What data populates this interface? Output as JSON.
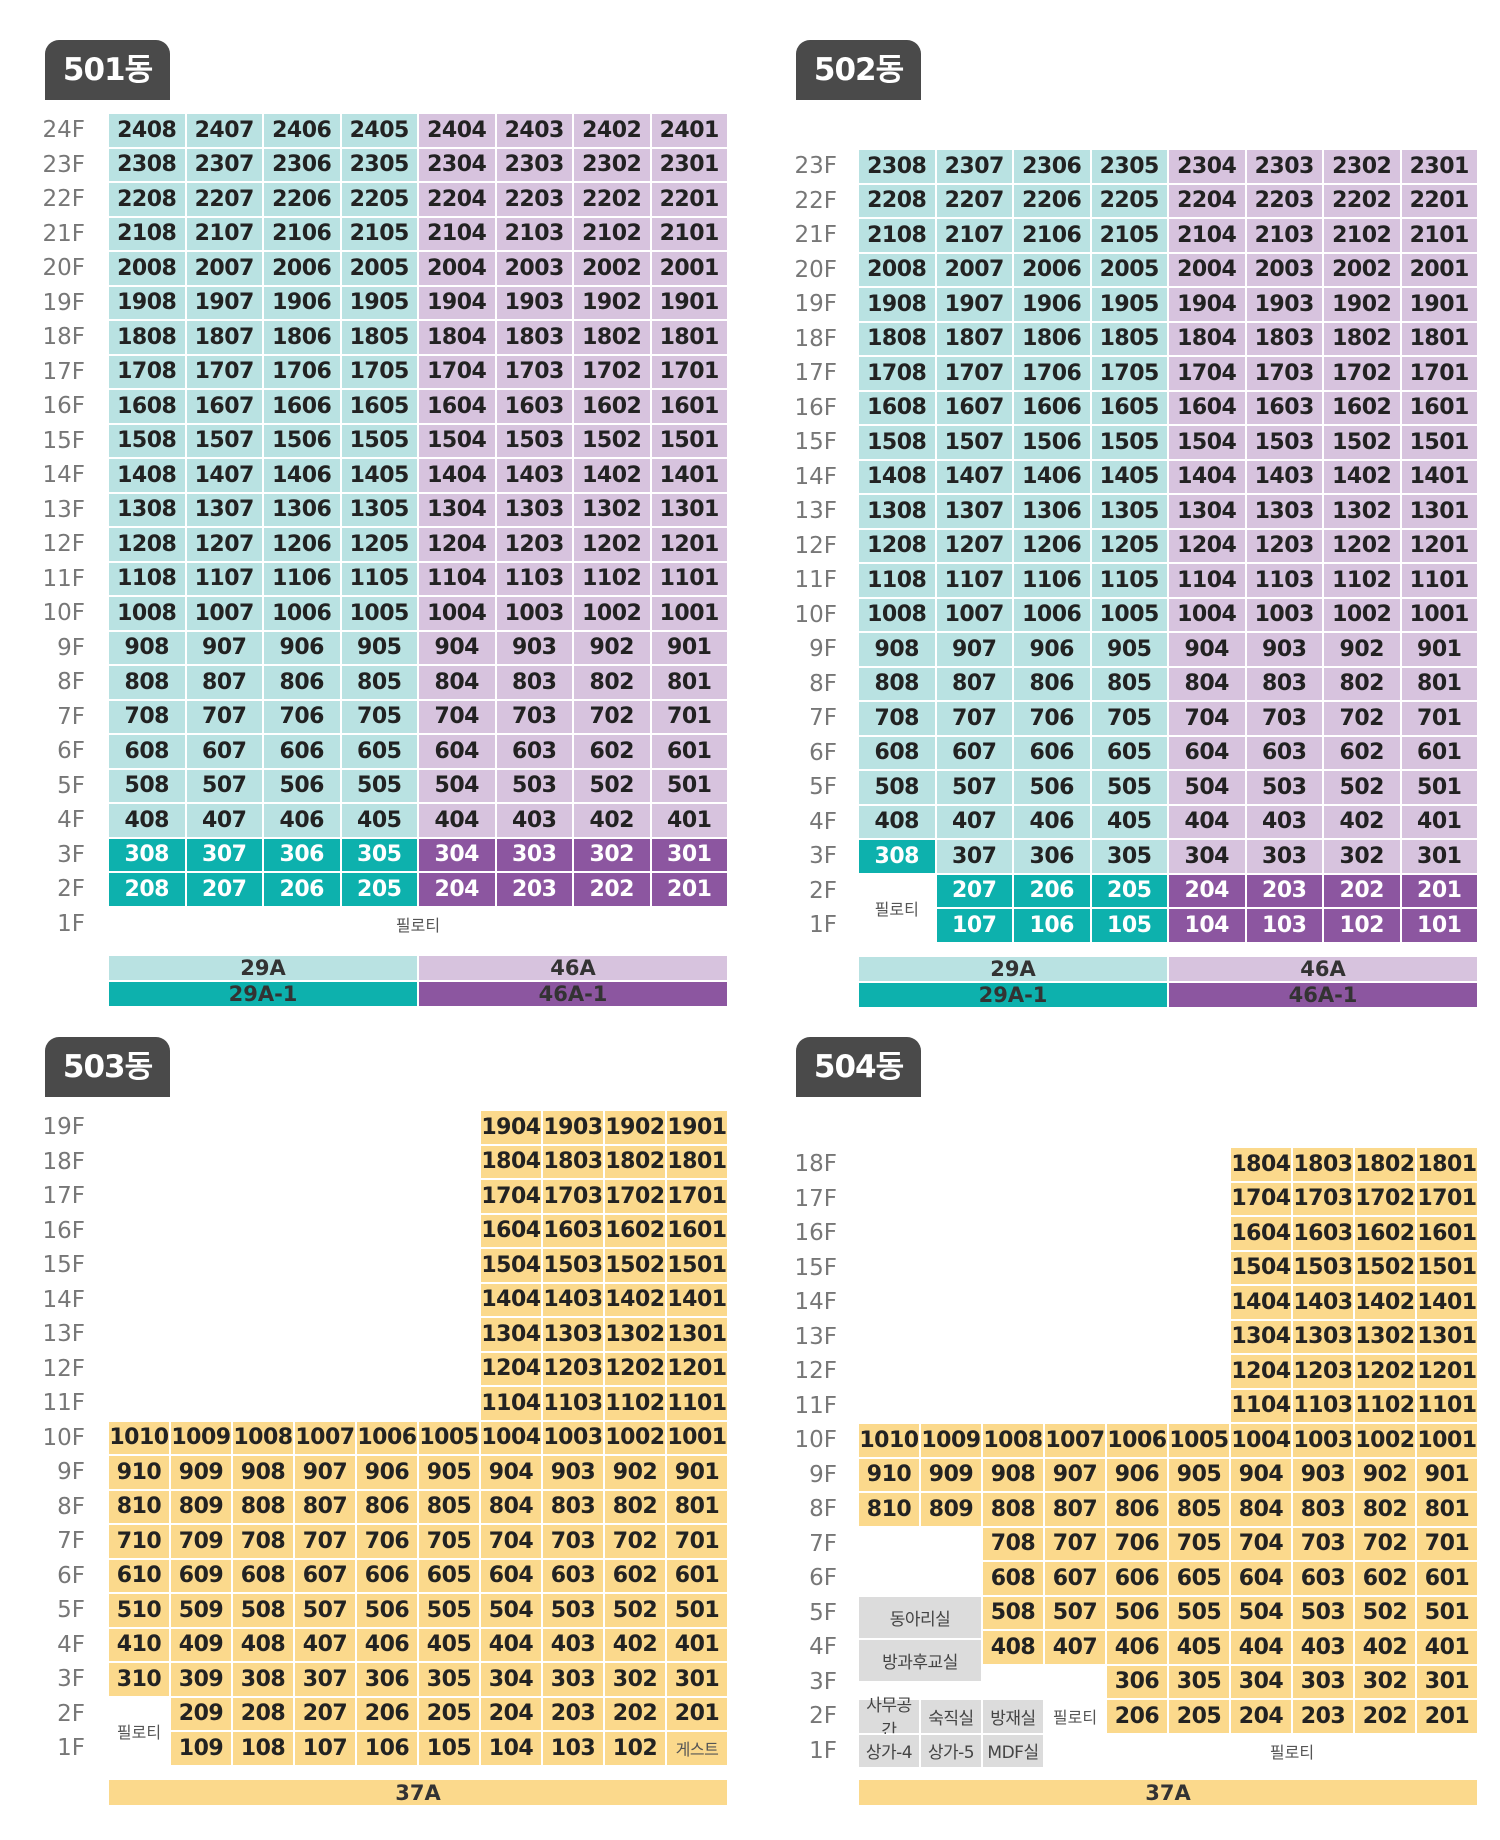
{
  "colors": {
    "type_a": "#b9e2e2",
    "type_b": "#d7c3de",
    "type_a1": "#0db1ad",
    "type_b1": "#8c56a0",
    "type_c": "#fbd98c",
    "facility": "#dcdcdc",
    "title_bg": "#4a4a4a"
  },
  "b501": {
    "title": "501동",
    "floors": [
      "24F",
      "23F",
      "22F",
      "21F",
      "20F",
      "19F",
      "18F",
      "17F",
      "16F",
      "15F",
      "14F",
      "13F",
      "12F",
      "11F",
      "10F",
      "9F",
      "8F",
      "7F",
      "6F",
      "5F",
      "4F",
      "3F",
      "2F",
      "1F"
    ],
    "units_upper": [
      [
        "2408",
        "2407",
        "2406",
        "2405",
        "2404",
        "2403",
        "2402",
        "2401"
      ],
      [
        "2308",
        "2307",
        "2306",
        "2305",
        "2304",
        "2303",
        "2302",
        "2301"
      ],
      [
        "2208",
        "2207",
        "2206",
        "2205",
        "2204",
        "2203",
        "2202",
        "2201"
      ],
      [
        "2108",
        "2107",
        "2106",
        "2105",
        "2104",
        "2103",
        "2102",
        "2101"
      ],
      [
        "2008",
        "2007",
        "2006",
        "2005",
        "2004",
        "2003",
        "2002",
        "2001"
      ],
      [
        "1908",
        "1907",
        "1906",
        "1905",
        "1904",
        "1903",
        "1902",
        "1901"
      ],
      [
        "1808",
        "1807",
        "1806",
        "1805",
        "1804",
        "1803",
        "1802",
        "1801"
      ],
      [
        "1708",
        "1707",
        "1706",
        "1705",
        "1704",
        "1703",
        "1702",
        "1701"
      ],
      [
        "1608",
        "1607",
        "1606",
        "1605",
        "1604",
        "1603",
        "1602",
        "1601"
      ],
      [
        "1508",
        "1507",
        "1506",
        "1505",
        "1504",
        "1503",
        "1502",
        "1501"
      ],
      [
        "1408",
        "1407",
        "1406",
        "1405",
        "1404",
        "1403",
        "1402",
        "1401"
      ],
      [
        "1308",
        "1307",
        "1306",
        "1305",
        "1304",
        "1303",
        "1302",
        "1301"
      ],
      [
        "1208",
        "1207",
        "1206",
        "1205",
        "1204",
        "1203",
        "1202",
        "1201"
      ],
      [
        "1108",
        "1107",
        "1106",
        "1105",
        "1104",
        "1103",
        "1102",
        "1101"
      ],
      [
        "1008",
        "1007",
        "1006",
        "1005",
        "1004",
        "1003",
        "1002",
        "1001"
      ],
      [
        "908",
        "907",
        "906",
        "905",
        "904",
        "903",
        "902",
        "901"
      ],
      [
        "808",
        "807",
        "806",
        "805",
        "804",
        "803",
        "802",
        "801"
      ],
      [
        "708",
        "707",
        "706",
        "705",
        "704",
        "703",
        "702",
        "701"
      ],
      [
        "608",
        "607",
        "606",
        "605",
        "604",
        "603",
        "602",
        "601"
      ],
      [
        "508",
        "507",
        "506",
        "505",
        "504",
        "503",
        "502",
        "501"
      ],
      [
        "408",
        "407",
        "406",
        "405",
        "404",
        "403",
        "402",
        "401"
      ]
    ],
    "units_lower": [
      [
        "308",
        "307",
        "306",
        "305",
        "304",
        "303",
        "302",
        "301"
      ],
      [
        "208",
        "207",
        "206",
        "205",
        "204",
        "203",
        "202",
        "201"
      ]
    ],
    "pilotis": "필로티",
    "legend": {
      "a": "29A",
      "b": "46A",
      "a1": "29A-1",
      "b1": "46A-1"
    }
  },
  "b502": {
    "title": "502동",
    "floors": [
      "23F",
      "22F",
      "21F",
      "20F",
      "19F",
      "18F",
      "17F",
      "16F",
      "15F",
      "14F",
      "13F",
      "12F",
      "11F",
      "10F",
      "9F",
      "8F",
      "7F",
      "6F",
      "5F",
      "4F",
      "3F",
      "2F",
      "1F"
    ],
    "units_upper": [
      [
        "2308",
        "2307",
        "2306",
        "2305",
        "2304",
        "2303",
        "2302",
        "2301"
      ],
      [
        "2208",
        "2207",
        "2206",
        "2205",
        "2204",
        "2203",
        "2202",
        "2201"
      ],
      [
        "2108",
        "2107",
        "2106",
        "2105",
        "2104",
        "2103",
        "2102",
        "2101"
      ],
      [
        "2008",
        "2007",
        "2006",
        "2005",
        "2004",
        "2003",
        "2002",
        "2001"
      ],
      [
        "1908",
        "1907",
        "1906",
        "1905",
        "1904",
        "1903",
        "1902",
        "1901"
      ],
      [
        "1808",
        "1807",
        "1806",
        "1805",
        "1804",
        "1803",
        "1802",
        "1801"
      ],
      [
        "1708",
        "1707",
        "1706",
        "1705",
        "1704",
        "1703",
        "1702",
        "1701"
      ],
      [
        "1608",
        "1607",
        "1606",
        "1605",
        "1604",
        "1603",
        "1602",
        "1601"
      ],
      [
        "1508",
        "1507",
        "1506",
        "1505",
        "1504",
        "1503",
        "1502",
        "1501"
      ],
      [
        "1408",
        "1407",
        "1406",
        "1405",
        "1404",
        "1403",
        "1402",
        "1401"
      ],
      [
        "1308",
        "1307",
        "1306",
        "1305",
        "1304",
        "1303",
        "1302",
        "1301"
      ],
      [
        "1208",
        "1207",
        "1206",
        "1205",
        "1204",
        "1203",
        "1202",
        "1201"
      ],
      [
        "1108",
        "1107",
        "1106",
        "1105",
        "1104",
        "1103",
        "1102",
        "1101"
      ],
      [
        "1008",
        "1007",
        "1006",
        "1005",
        "1004",
        "1003",
        "1002",
        "1001"
      ],
      [
        "908",
        "907",
        "906",
        "905",
        "904",
        "903",
        "902",
        "901"
      ],
      [
        "808",
        "807",
        "806",
        "805",
        "804",
        "803",
        "802",
        "801"
      ],
      [
        "708",
        "707",
        "706",
        "705",
        "704",
        "703",
        "702",
        "701"
      ],
      [
        "608",
        "607",
        "606",
        "605",
        "604",
        "603",
        "602",
        "601"
      ],
      [
        "508",
        "507",
        "506",
        "505",
        "504",
        "503",
        "502",
        "501"
      ],
      [
        "408",
        "407",
        "406",
        "405",
        "404",
        "403",
        "402",
        "401"
      ],
      [
        "308",
        "307",
        "306",
        "305",
        "304",
        "303",
        "302",
        "301"
      ]
    ],
    "units_2f": [
      "207",
      "206",
      "205",
      "204",
      "203",
      "202",
      "201"
    ],
    "units_1f": [
      "107",
      "106",
      "105",
      "104",
      "103",
      "102",
      "101"
    ],
    "pilotis": "필로티",
    "legend": {
      "a": "29A",
      "b": "46A",
      "a1": "29A-1",
      "b1": "46A-1"
    }
  },
  "b503": {
    "title": "503동",
    "floors": [
      "19F",
      "18F",
      "17F",
      "16F",
      "15F",
      "14F",
      "13F",
      "12F",
      "11F",
      "10F",
      "9F",
      "8F",
      "7F",
      "6F",
      "5F",
      "4F",
      "3F",
      "2F",
      "1F"
    ],
    "tower": [
      [
        "1904",
        "1903",
        "1902",
        "1901"
      ],
      [
        "1804",
        "1803",
        "1802",
        "1801"
      ],
      [
        "1704",
        "1703",
        "1702",
        "1701"
      ],
      [
        "1604",
        "1603",
        "1602",
        "1601"
      ],
      [
        "1504",
        "1503",
        "1502",
        "1501"
      ],
      [
        "1404",
        "1403",
        "1402",
        "1401"
      ],
      [
        "1304",
        "1303",
        "1302",
        "1301"
      ],
      [
        "1204",
        "1203",
        "1202",
        "1201"
      ],
      [
        "1104",
        "1103",
        "1102",
        "1101"
      ]
    ],
    "wide": [
      [
        "1010",
        "1009",
        "1008",
        "1007",
        "1006",
        "1005",
        "1004",
        "1003",
        "1002",
        "1001"
      ],
      [
        "910",
        "909",
        "908",
        "907",
        "906",
        "905",
        "904",
        "903",
        "902",
        "901"
      ],
      [
        "810",
        "809",
        "808",
        "807",
        "806",
        "805",
        "804",
        "803",
        "802",
        "801"
      ],
      [
        "710",
        "709",
        "708",
        "707",
        "706",
        "705",
        "704",
        "703",
        "702",
        "701"
      ],
      [
        "610",
        "609",
        "608",
        "607",
        "606",
        "605",
        "604",
        "603",
        "602",
        "601"
      ],
      [
        "510",
        "509",
        "508",
        "507",
        "506",
        "505",
        "504",
        "503",
        "502",
        "501"
      ],
      [
        "410",
        "409",
        "408",
        "407",
        "406",
        "405",
        "404",
        "403",
        "402",
        "401"
      ],
      [
        "310",
        "309",
        "308",
        "307",
        "306",
        "305",
        "304",
        "303",
        "302",
        "301"
      ]
    ],
    "units_2f": [
      "209",
      "208",
      "207",
      "206",
      "205",
      "204",
      "203",
      "202",
      "201"
    ],
    "units_1f": [
      "109",
      "108",
      "107",
      "106",
      "105",
      "104",
      "103",
      "102"
    ],
    "guest": "게스트",
    "pilotis": "필로티",
    "legend": "37A"
  },
  "b504": {
    "title": "504동",
    "floors": [
      "18F",
      "17F",
      "16F",
      "15F",
      "14F",
      "13F",
      "12F",
      "11F",
      "10F",
      "9F",
      "8F",
      "7F",
      "6F",
      "5F",
      "4F",
      "3F",
      "2F",
      "1F"
    ],
    "tower": [
      [
        "1804",
        "1803",
        "1802",
        "1801"
      ],
      [
        "1704",
        "1703",
        "1702",
        "1701"
      ],
      [
        "1604",
        "1603",
        "1602",
        "1601"
      ],
      [
        "1504",
        "1503",
        "1502",
        "1501"
      ],
      [
        "1404",
        "1403",
        "1402",
        "1401"
      ],
      [
        "1304",
        "1303",
        "1302",
        "1301"
      ],
      [
        "1204",
        "1203",
        "1202",
        "1201"
      ],
      [
        "1104",
        "1103",
        "1102",
        "1101"
      ]
    ],
    "wide": [
      [
        "1010",
        "1009",
        "1008",
        "1007",
        "1006",
        "1005",
        "1004",
        "1003",
        "1002",
        "1001"
      ],
      [
        "910",
        "909",
        "908",
        "907",
        "906",
        "905",
        "904",
        "903",
        "902",
        "901"
      ],
      [
        "810",
        "809",
        "808",
        "807",
        "806",
        "805",
        "804",
        "803",
        "802",
        "801"
      ]
    ],
    "mid": [
      [
        "708",
        "707",
        "706",
        "705",
        "704",
        "703",
        "702",
        "701"
      ],
      [
        "608",
        "607",
        "606",
        "605",
        "604",
        "603",
        "602",
        "601"
      ],
      [
        "508",
        "507",
        "506",
        "505",
        "504",
        "503",
        "502",
        "501"
      ],
      [
        "408",
        "407",
        "406",
        "405",
        "404",
        "403",
        "402",
        "401"
      ]
    ],
    "low": [
      [
        "306",
        "305",
        "304",
        "303",
        "302",
        "301"
      ],
      [
        "206",
        "205",
        "204",
        "203",
        "202",
        "201"
      ]
    ],
    "facilities": {
      "club": "동아리실",
      "afterschool": "방과후교실",
      "office": "사무공간",
      "duty": "숙직실",
      "disaster": "방재실",
      "shop4": "상가-4",
      "shop5": "상가-5",
      "mdf": "MDF실"
    },
    "pilotis": "필로티",
    "legend": "37A"
  }
}
